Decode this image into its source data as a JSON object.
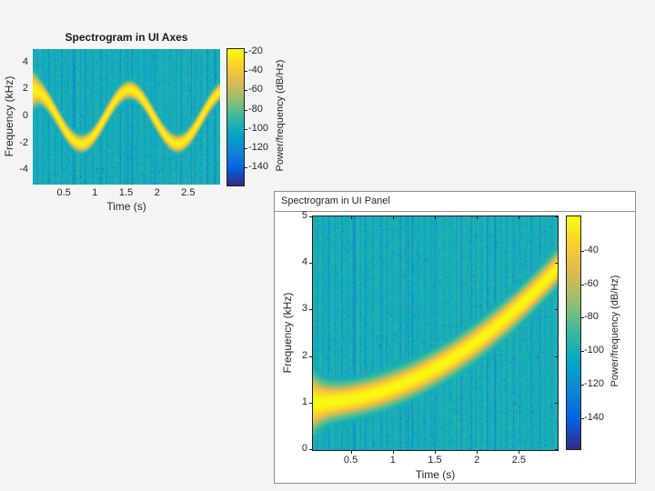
{
  "window": {
    "background": "#f4f4f4"
  },
  "panel": {
    "title": "Spectrogram in UI Panel"
  },
  "chart_data": [
    {
      "type": "heatmap",
      "container": "uiaxes",
      "title": "Spectrogram in UI Axes",
      "xlabel": "Time (s)",
      "ylabel": "Frequency (kHz)",
      "x_range": [
        0,
        3
      ],
      "y_range": [
        -5,
        5
      ],
      "x_ticks": [
        0.5,
        1,
        1.5,
        2,
        2.5
      ],
      "y_ticks": [
        4,
        2,
        0,
        -2,
        -4
      ],
      "clim": [
        -160,
        -16
      ],
      "colormap": "parula",
      "background_db": -99,
      "colorbar": {
        "label": "Power/frequency (dB/Hz)",
        "ticks": [
          -20,
          -40,
          -60,
          -80,
          -100,
          -120,
          -140
        ]
      },
      "ridge": {
        "kind": "fm_sine",
        "center_khz": 0,
        "amplitude_khz": 2,
        "period_s": 1.55,
        "peak_db": -20,
        "core_falloff": 170,
        "skirt_db": -52,
        "skirt_falloff": 80
      }
    },
    {
      "type": "heatmap",
      "container": "uipanel",
      "title": "Spectrogram in UI Panel",
      "xlabel": "Time (s)",
      "ylabel": "Frequency (kHz)",
      "x_range": [
        0.05,
        2.95
      ],
      "y_range": [
        0,
        5
      ],
      "x_ticks": [
        0.5,
        1,
        1.5,
        2,
        2.5
      ],
      "y_ticks": [
        5,
        4,
        3,
        2,
        1,
        0
      ],
      "clim": [
        -159,
        -19
      ],
      "colormap": "parula",
      "background_db": -99,
      "colorbar": {
        "label": "Power/frequency (dB/Hz)",
        "ticks": [
          -40,
          -60,
          -80,
          -100,
          -120,
          -140
        ]
      },
      "ridge": {
        "kind": "quadratic_chirp",
        "f0_khz": 1,
        "f1_khz": 4,
        "duration_s": 3,
        "peak_db": -20,
        "core_falloff": 600,
        "skirt_db": -52,
        "skirt_falloff": 250
      }
    }
  ]
}
